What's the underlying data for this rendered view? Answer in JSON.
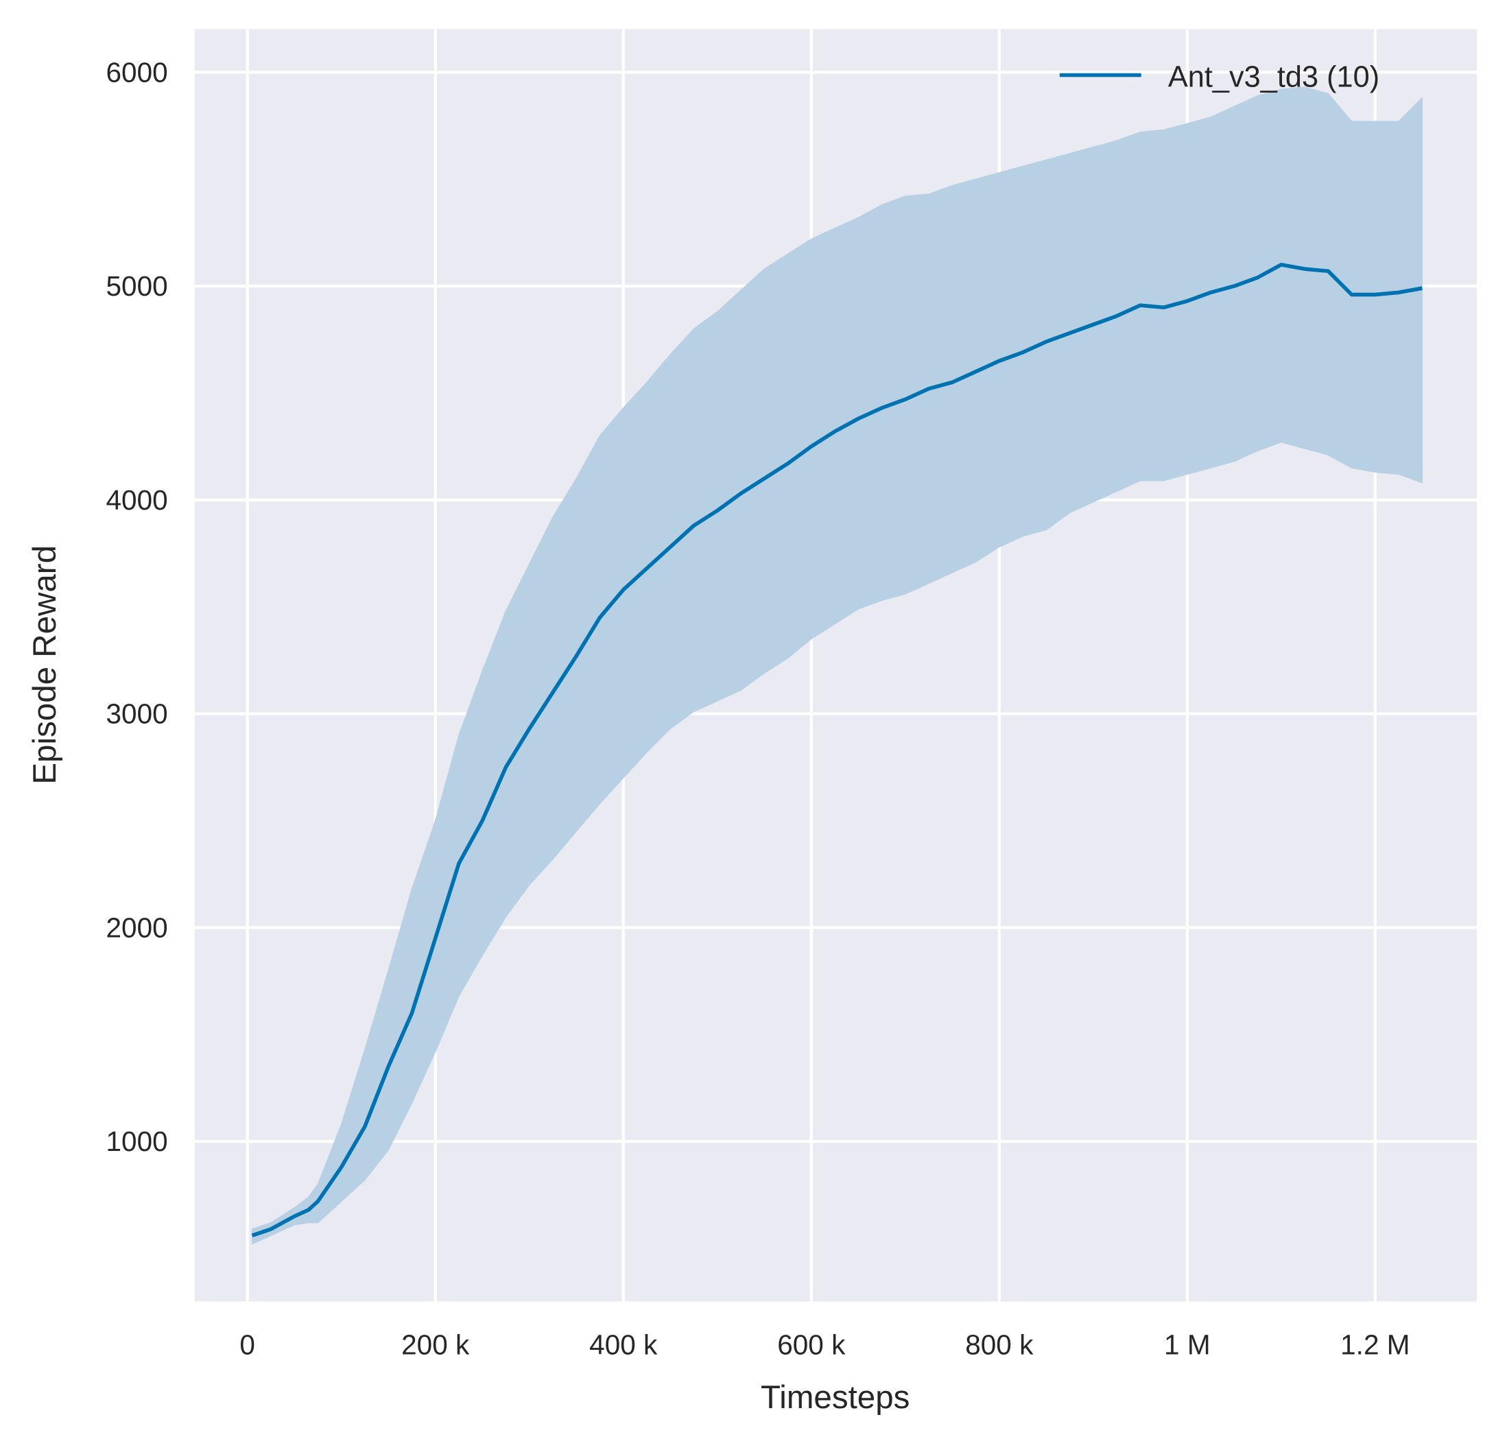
{
  "chart_data": {
    "type": "line",
    "title": "",
    "xlabel": "Timesteps",
    "ylabel": "Episode Reward",
    "xlim": [
      -55000,
      1310000
    ],
    "ylim": [
      300,
      6220
    ],
    "grid": true,
    "legend_placement": "top-right",
    "colors": {
      "line": "#0072b2",
      "band": "#b8d0e3",
      "background": "#eaeaf2",
      "grid": "#ffffff"
    },
    "x_ticks": [
      0,
      200000,
      400000,
      600000,
      800000,
      1000000,
      1200000
    ],
    "x_tick_labels": [
      "0",
      "200 k",
      "400 k",
      "600 k",
      "800 k",
      "1 M",
      "1.2 M"
    ],
    "y_ticks": [
      1000,
      2000,
      3000,
      4000,
      5000,
      6000
    ],
    "y_tick_labels": [
      "1000",
      "2000",
      "3000",
      "4000",
      "5000",
      "6000"
    ],
    "series": [
      {
        "name": "Ant_v3_td3 (10)",
        "x": [
          5000,
          25000,
          50000,
          65000,
          75000,
          100000,
          125000,
          150000,
          175000,
          200000,
          225000,
          250000,
          275000,
          300000,
          325000,
          350000,
          375000,
          400000,
          425000,
          450000,
          475000,
          500000,
          525000,
          550000,
          575000,
          600000,
          625000,
          650000,
          675000,
          700000,
          725000,
          750000,
          775000,
          800000,
          825000,
          850000,
          875000,
          900000,
          925000,
          950000,
          975000,
          1000000,
          1025000,
          1050000,
          1075000,
          1100000,
          1125000,
          1150000,
          1175000,
          1200000,
          1225000,
          1250000
        ],
        "mean": [
          560,
          590,
          650,
          680,
          720,
          880,
          1070,
          1350,
          1600,
          1950,
          2300,
          2500,
          2750,
          2930,
          3100,
          3270,
          3450,
          3580,
          3680,
          3780,
          3880,
          3950,
          4030,
          4100,
          4170,
          4250,
          4320,
          4380,
          4430,
          4470,
          4520,
          4550,
          4600,
          4650,
          4690,
          4740,
          4780,
          4820,
          4860,
          4910,
          4900,
          4930,
          4970,
          5000,
          5040,
          5100,
          5080,
          5070,
          4960,
          4960,
          4970,
          4990
        ],
        "upper": [
          590,
          620,
          690,
          740,
          800,
          1080,
          1430,
          1800,
          2180,
          2500,
          2900,
          3200,
          3480,
          3700,
          3920,
          4100,
          4300,
          4430,
          4550,
          4680,
          4800,
          4880,
          4980,
          5080,
          5150,
          5220,
          5270,
          5320,
          5380,
          5420,
          5430,
          5470,
          5500,
          5530,
          5560,
          5590,
          5620,
          5650,
          5680,
          5720,
          5730,
          5760,
          5790,
          5840,
          5890,
          5920,
          5930,
          5900,
          5770,
          5770,
          5770,
          5880
        ],
        "lower": [
          520,
          560,
          610,
          620,
          620,
          720,
          820,
          960,
          1180,
          1420,
          1680,
          1870,
          2050,
          2200,
          2320,
          2450,
          2580,
          2700,
          2820,
          2930,
          3010,
          3060,
          3110,
          3190,
          3260,
          3350,
          3420,
          3490,
          3530,
          3560,
          3610,
          3660,
          3710,
          3780,
          3830,
          3860,
          3940,
          3990,
          4040,
          4090,
          4090,
          4120,
          4150,
          4180,
          4230,
          4270,
          4240,
          4210,
          4150,
          4130,
          4120,
          4080
        ]
      }
    ]
  }
}
